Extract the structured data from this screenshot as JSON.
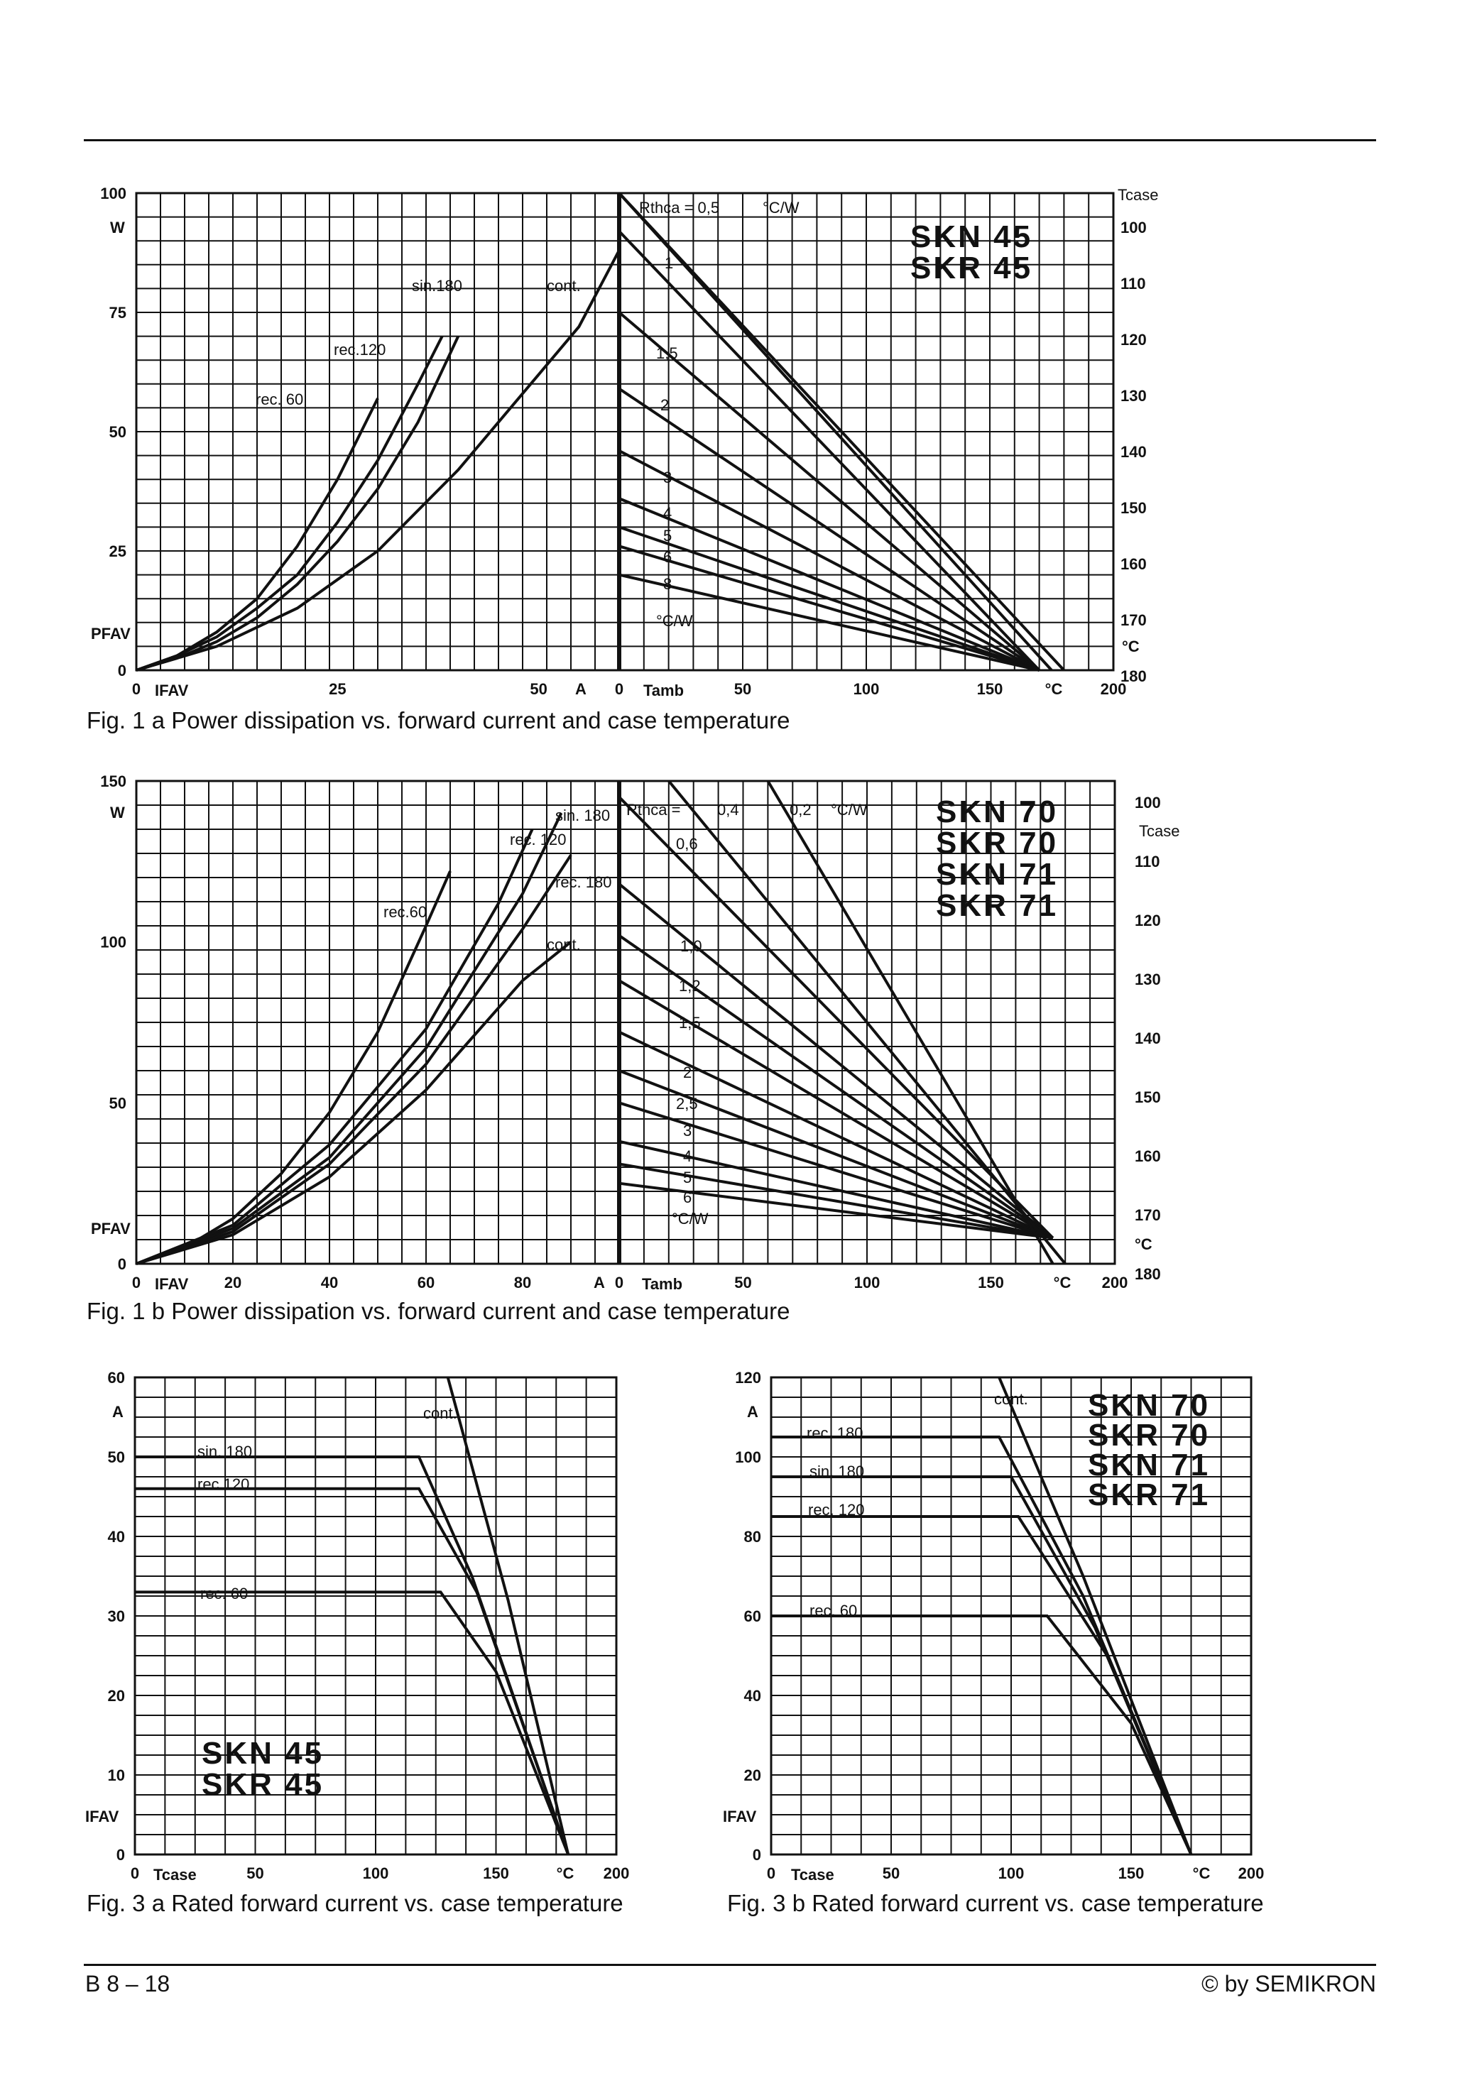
{
  "page": {
    "id": "B 8 – 18",
    "copyright": "© by SEMIKRON"
  },
  "chart_data": [
    {
      "id": "fig1a",
      "type": "line",
      "title": "Fig. 1 a  Power dissipation vs. forward current and case temperature",
      "devices": [
        "SKN 45",
        "SKR 45"
      ],
      "left_panel": {
        "xlabel": "IFAV",
        "xunit": "A",
        "ylabel": "PFAV",
        "yunit": "W",
        "xlim": [
          0,
          60
        ],
        "ylim": [
          0,
          100
        ],
        "x_ticks": [
          "0",
          "25",
          "50"
        ],
        "y_ticks": [
          "0",
          "25",
          "50",
          "75",
          "100"
        ],
        "series": [
          {
            "name": "rec. 60",
            "points": [
              [
                0,
                0
              ],
              [
                5,
                3
              ],
              [
                10,
                8
              ],
              [
                15,
                15
              ],
              [
                20,
                26
              ],
              [
                25,
                40
              ],
              [
                30,
                57
              ]
            ]
          },
          {
            "name": "rec.120",
            "points": [
              [
                0,
                0
              ],
              [
                5,
                3
              ],
              [
                10,
                7
              ],
              [
                15,
                13
              ],
              [
                20,
                20
              ],
              [
                25,
                31
              ],
              [
                30,
                44
              ],
              [
                35,
                60
              ],
              [
                38,
                70
              ]
            ]
          },
          {
            "name": "sin.180",
            "points": [
              [
                0,
                0
              ],
              [
                5,
                2.5
              ],
              [
                10,
                6
              ],
              [
                15,
                11
              ],
              [
                20,
                18
              ],
              [
                25,
                27
              ],
              [
                30,
                38
              ],
              [
                35,
                52
              ],
              [
                40,
                70
              ]
            ]
          },
          {
            "name": "cont.",
            "points": [
              [
                0,
                0
              ],
              [
                10,
                5
              ],
              [
                20,
                13
              ],
              [
                30,
                25
              ],
              [
                40,
                42
              ],
              [
                50,
                62
              ],
              [
                55,
                72
              ],
              [
                60,
                88
              ]
            ]
          }
        ]
      },
      "right_panel": {
        "xlabel": "Tamb",
        "xunit": "°C",
        "x_ticks": [
          "0",
          "50",
          "100",
          "150",
          "200"
        ],
        "xlim": [
          0,
          200
        ],
        "secondary_label": "Tcase",
        "secondary_unit": "°C",
        "secondary_ticks": [
          "100",
          "110",
          "120",
          "130",
          "140",
          "150",
          "160",
          "170",
          "180"
        ],
        "rthca_unit": "°C/W",
        "rthca_labels": [
          "Rthca = 0,5",
          "1",
          "1,5",
          "2",
          "3",
          "4",
          "5",
          "6",
          "8"
        ],
        "lines_value_at_Tamb0": [
          {
            "rthca": "0,5",
            "p": 100
          },
          {
            "rthca": "1",
            "p": 92
          },
          {
            "rthca": "1,5",
            "p": 75
          },
          {
            "rthca": "2",
            "p": 59
          },
          {
            "rthca": "3",
            "p": 46
          },
          {
            "rthca": "4",
            "p": 36
          },
          {
            "rthca": "5",
            "p": 30
          },
          {
            "rthca": "6",
            "p": 26
          },
          {
            "rthca": "8",
            "p": 20
          }
        ],
        "line_end_Tamb": 180
      }
    },
    {
      "id": "fig1b",
      "type": "line",
      "title": "Fig. 1 b  Power dissipation vs. forward current and case temperature",
      "devices": [
        "SKN 70",
        "SKR 70",
        "SKN 71",
        "SKR 71"
      ],
      "left_panel": {
        "xlabel": "IFAV",
        "xunit": "A",
        "ylabel": "PFAV",
        "yunit": "W",
        "xlim": [
          0,
          100
        ],
        "ylim": [
          0,
          150
        ],
        "x_ticks": [
          "0",
          "20",
          "40",
          "60",
          "80"
        ],
        "y_ticks": [
          "0",
          "50",
          "100",
          "150"
        ],
        "series": [
          {
            "name": "rec.60",
            "points": [
              [
                0,
                0
              ],
              [
                10,
                5
              ],
              [
                20,
                14
              ],
              [
                30,
                28
              ],
              [
                40,
                47
              ],
              [
                50,
                72
              ],
              [
                60,
                105
              ],
              [
                65,
                122
              ]
            ]
          },
          {
            "name": "rec. 120",
            "points": [
              [
                0,
                0
              ],
              [
                20,
                12
              ],
              [
                40,
                37
              ],
              [
                60,
                73
              ],
              [
                75,
                112
              ],
              [
                82,
                135
              ]
            ]
          },
          {
            "name": "sin. 180",
            "points": [
              [
                0,
                0
              ],
              [
                20,
                11
              ],
              [
                40,
                33
              ],
              [
                60,
                67
              ],
              [
                80,
                115
              ],
              [
                88,
                140
              ]
            ]
          },
          {
            "name": "rec. 180",
            "points": [
              [
                0,
                0
              ],
              [
                20,
                10
              ],
              [
                40,
                31
              ],
              [
                60,
                62
              ],
              [
                80,
                104
              ],
              [
                90,
                127
              ]
            ]
          },
          {
            "name": "cont.",
            "points": [
              [
                0,
                0
              ],
              [
                20,
                9
              ],
              [
                40,
                27
              ],
              [
                60,
                54
              ],
              [
                80,
                88
              ],
              [
                90,
                100
              ]
            ]
          }
        ]
      },
      "right_panel": {
        "xlabel": "Tamb",
        "xunit": "°C",
        "x_ticks": [
          "0",
          "50",
          "100",
          "150",
          "200"
        ],
        "xlim": [
          0,
          200
        ],
        "secondary_label": "Tcase",
        "secondary_unit": "°C",
        "secondary_ticks": [
          "100",
          "110",
          "120",
          "130",
          "140",
          "150",
          "160",
          "170",
          "180"
        ],
        "rthca_unit": "°C/W",
        "rthca_labels": [
          "Rthca =",
          "0,4",
          "0,2",
          "0,6",
          "1,0",
          "1,2",
          "1,5",
          "2",
          "2,5",
          "3",
          "4",
          "5",
          "6"
        ],
        "lines_value_at_Tamb0": [
          {
            "rthca": "0,6",
            "p": 145
          },
          {
            "rthca": "1,0",
            "p": 118
          },
          {
            "rthca": "1,2",
            "p": 102
          },
          {
            "rthca": "1,5",
            "p": 88
          },
          {
            "rthca": "2",
            "p": 72
          },
          {
            "rthca": "2,5",
            "p": 60
          },
          {
            "rthca": "3",
            "p": 50
          },
          {
            "rthca": "4",
            "p": 38
          },
          {
            "rthca": "5",
            "p": 31
          },
          {
            "rthca": "6",
            "p": 25
          }
        ],
        "line_end_Tamb": 175
      }
    },
    {
      "id": "fig3a",
      "type": "line",
      "title": "Fig. 3 a  Rated forward current vs. case temperature",
      "devices": [
        "SKN 45",
        "SKR 45"
      ],
      "xlabel": "Tcase",
      "xunit": "°C",
      "ylabel": "IFAV",
      "yunit": "A",
      "xlim": [
        0,
        200
      ],
      "ylim": [
        0,
        60
      ],
      "x_ticks": [
        "0",
        "50",
        "100",
        "150",
        "200"
      ],
      "y_ticks": [
        "0",
        "10",
        "20",
        "30",
        "40",
        "50",
        "60"
      ],
      "series": [
        {
          "name": "sin. 180",
          "points": [
            [
              0,
              50
            ],
            [
              118,
              50
            ],
            [
              140,
              35
            ],
            [
              180,
              0
            ]
          ]
        },
        {
          "name": "rec.120",
          "points": [
            [
              0,
              46
            ],
            [
              118,
              46
            ],
            [
              142,
              33
            ],
            [
              180,
              0
            ]
          ]
        },
        {
          "name": "rec. 60",
          "points": [
            [
              0,
              33
            ],
            [
              127,
              33
            ],
            [
              150,
              23
            ],
            [
              180,
              0
            ]
          ]
        },
        {
          "name": "cont.",
          "points": [
            [
              130,
              60
            ],
            [
              155,
              32
            ],
            [
              180,
              0
            ]
          ]
        }
      ]
    },
    {
      "id": "fig3b",
      "type": "line",
      "title": "Fig. 3 b  Rated forward current vs. case temperature",
      "devices": [
        "SKN 70",
        "SKR 70",
        "SKN 71",
        "SKR 71"
      ],
      "xlabel": "Tcase",
      "xunit": "°C",
      "ylabel": "IFAV",
      "yunit": "A",
      "xlim": [
        0,
        200
      ],
      "ylim": [
        0,
        120
      ],
      "x_ticks": [
        "0",
        "50",
        "100",
        "150",
        "200"
      ],
      "y_ticks": [
        "0",
        "20",
        "40",
        "60",
        "80",
        "100",
        "120"
      ],
      "series": [
        {
          "name": "rec. 180",
          "points": [
            [
              0,
              105
            ],
            [
              95,
              105
            ],
            [
              130,
              65
            ],
            [
              175,
              0
            ]
          ]
        },
        {
          "name": "sin. 180",
          "points": [
            [
              0,
              95
            ],
            [
              100,
              95
            ],
            [
              135,
              57
            ],
            [
              175,
              0
            ]
          ]
        },
        {
          "name": "rec. 120",
          "points": [
            [
              0,
              85
            ],
            [
              103,
              85
            ],
            [
              140,
              50
            ],
            [
              175,
              0
            ]
          ]
        },
        {
          "name": "rec. 60",
          "points": [
            [
              0,
              60
            ],
            [
              115,
              60
            ],
            [
              150,
              33
            ],
            [
              175,
              0
            ]
          ]
        },
        {
          "name": "cont.",
          "points": [
            [
              95,
              120
            ],
            [
              130,
              70
            ],
            [
              175,
              0
            ]
          ]
        }
      ]
    }
  ]
}
